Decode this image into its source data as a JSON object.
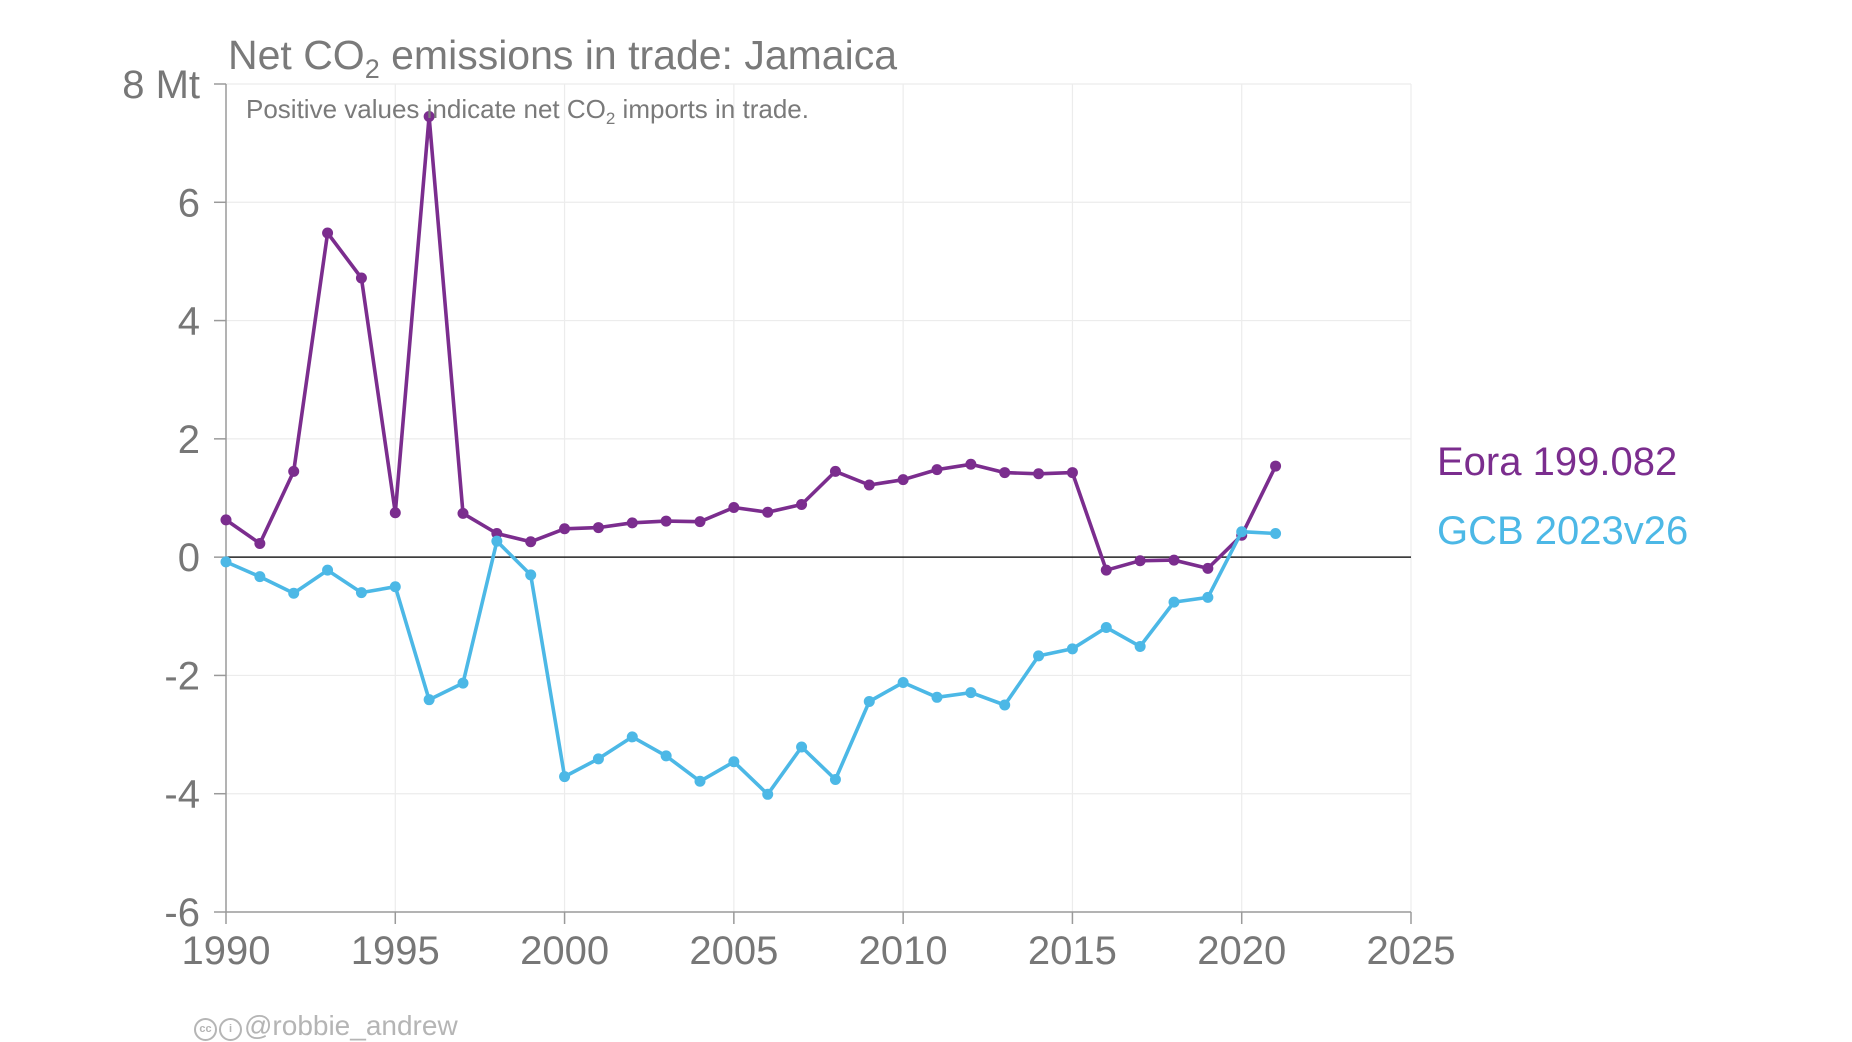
{
  "chart_data": {
    "type": "line",
    "title_parts": [
      "Net CO",
      "2",
      " emissions in trade: Jamaica"
    ],
    "subtitle_parts": [
      "Positive values indicate net CO",
      "2",
      " imports in trade."
    ],
    "y_unit": "Mt",
    "xlim": [
      1990,
      2025
    ],
    "ylim": [
      -6,
      8
    ],
    "x_ticks": [
      1990,
      1995,
      2000,
      2005,
      2010,
      2015,
      2020,
      2025
    ],
    "y_ticks": [
      -6,
      -4,
      -2,
      0,
      2,
      4,
      6,
      8
    ],
    "y_tick_labels": [
      "-6",
      "-4",
      "-2",
      "0",
      "2",
      "4",
      "6",
      "8 Mt"
    ],
    "grid": true,
    "legend_placement": "right",
    "x": [
      1990,
      1991,
      1992,
      1993,
      1994,
      1995,
      1996,
      1997,
      1998,
      1999,
      2000,
      2001,
      2002,
      2003,
      2004,
      2005,
      2006,
      2007,
      2008,
      2009,
      2010,
      2011,
      2012,
      2013,
      2014,
      2015,
      2016,
      2017,
      2018,
      2019,
      2020,
      2021
    ],
    "series": [
      {
        "name": "Eora 199.082",
        "color": "#7b2d8e",
        "values": [
          0.63,
          0.23,
          1.45,
          5.48,
          4.72,
          0.75,
          7.45,
          0.74,
          0.4,
          0.26,
          0.48,
          0.5,
          0.58,
          0.61,
          0.6,
          0.84,
          0.76,
          0.89,
          1.45,
          1.22,
          1.31,
          1.48,
          1.57,
          1.43,
          1.41,
          1.43,
          -0.22,
          -0.06,
          -0.05,
          -0.19,
          0.37,
          1.54
        ]
      },
      {
        "name": "GCB 2023v26",
        "color": "#4cb8e6",
        "values": [
          -0.08,
          -0.33,
          -0.61,
          -0.22,
          -0.6,
          -0.5,
          -2.41,
          -2.13,
          0.27,
          -0.3,
          -3.71,
          -3.41,
          -3.04,
          -3.36,
          -3.79,
          -3.46,
          -4.01,
          -3.21,
          -3.76,
          -2.44,
          -2.12,
          -2.37,
          -2.29,
          -2.5,
          -1.67,
          -1.55,
          -1.19,
          -1.51,
          -0.76,
          -0.68,
          0.43,
          0.4
        ]
      }
    ]
  },
  "credit": {
    "cc_icon": "cc-icon",
    "by_icon": "person-icon",
    "handle": "@robbie_andrew"
  }
}
